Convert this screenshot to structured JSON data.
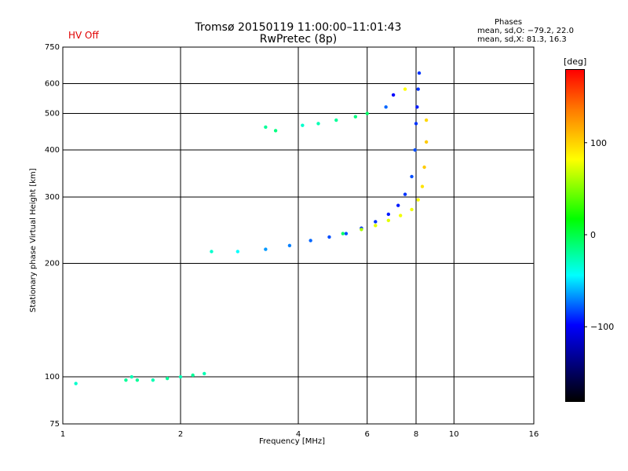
{
  "status_text": "HV Off",
  "title_line1": "Tromsø 20150119 11:00:00–11:01:43",
  "title_line2": "RwPretec (8p)",
  "stats": {
    "header": "Phases",
    "line_o": "mean, sd,O: −79.2, 22.0",
    "line_x": "mean, sd,X: 81.3, 16.3"
  },
  "colorbar": {
    "unit": "[deg]",
    "ticks": [
      {
        "label": "100",
        "value": 100
      },
      {
        "label": "0",
        "value": 0
      },
      {
        "label": "−100",
        "value": -100
      }
    ],
    "range": [
      -180,
      180
    ]
  },
  "chart_data": {
    "type": "scatter",
    "xlabel": "Frequency [MHz]",
    "ylabel": "Stationary phase Virtual Height [km]",
    "x_scale": "log",
    "y_scale": "log",
    "xlim": [
      1,
      16
    ],
    "ylim": [
      75,
      750
    ],
    "xticks": [
      {
        "label": "1",
        "value": 1
      },
      {
        "label": "2",
        "value": 2
      },
      {
        "label": "4",
        "value": 4
      },
      {
        "label": "6",
        "value": 6
      },
      {
        "label": "8",
        "value": 8
      },
      {
        "label": "10",
        "value": 10
      },
      {
        "label": "16",
        "value": 16
      }
    ],
    "yticks": [
      {
        "label": "75",
        "value": 75
      },
      {
        "label": "100",
        "value": 100
      },
      {
        "label": "200",
        "value": 200
      },
      {
        "label": "300",
        "value": 300
      },
      {
        "label": "400",
        "value": 400
      },
      {
        "label": "500",
        "value": 500
      },
      {
        "label": "600",
        "value": 600
      },
      {
        "label": "750",
        "value": 750
      }
    ],
    "grid": true,
    "series": [
      {
        "trace": "e-layer",
        "points": [
          [
            1.08,
            96,
            -40
          ],
          [
            1.45,
            98,
            -30
          ],
          [
            1.5,
            100,
            -35
          ],
          [
            1.55,
            98,
            -30
          ],
          [
            1.7,
            98,
            -35
          ],
          [
            1.85,
            99,
            -30
          ],
          [
            2.0,
            100,
            -35
          ],
          [
            2.15,
            101,
            -30
          ],
          [
            2.3,
            102,
            -35
          ]
        ]
      },
      {
        "trace": "o-trace-f",
        "points": [
          [
            2.4,
            215,
            -40
          ],
          [
            2.8,
            215,
            -50
          ],
          [
            3.3,
            218,
            -70
          ],
          [
            3.8,
            223,
            -75
          ],
          [
            4.3,
            230,
            -80
          ],
          [
            4.8,
            235,
            -85
          ],
          [
            5.3,
            240,
            -85
          ],
          [
            5.8,
            248,
            -90
          ],
          [
            6.3,
            258,
            -90
          ],
          [
            6.8,
            270,
            -95
          ],
          [
            7.2,
            285,
            -95
          ],
          [
            7.5,
            305,
            -90
          ],
          [
            7.8,
            340,
            -85
          ],
          [
            7.95,
            400,
            -85
          ],
          [
            8.0,
            470,
            -90
          ],
          [
            8.05,
            520,
            -95
          ],
          [
            8.1,
            580,
            -90
          ],
          [
            8.15,
            640,
            -90
          ]
        ]
      },
      {
        "trace": "x-trace-f",
        "points": [
          [
            5.2,
            240,
            -20
          ],
          [
            5.8,
            246,
            60
          ],
          [
            6.3,
            252,
            80
          ],
          [
            6.8,
            260,
            80
          ],
          [
            7.3,
            268,
            85
          ],
          [
            7.8,
            278,
            85
          ],
          [
            8.1,
            295,
            90
          ],
          [
            8.3,
            320,
            100
          ],
          [
            8.4,
            360,
            110
          ],
          [
            8.5,
            420,
            110
          ],
          [
            8.5,
            480,
            105
          ]
        ]
      },
      {
        "trace": "f2-upper",
        "points": [
          [
            3.3,
            460,
            -30
          ],
          [
            3.5,
            450,
            -25
          ],
          [
            4.1,
            465,
            -40
          ],
          [
            4.5,
            470,
            -35
          ],
          [
            5.0,
            480,
            -30
          ],
          [
            5.6,
            490,
            -25
          ],
          [
            6.0,
            500,
            -20
          ],
          [
            6.7,
            520,
            -80
          ],
          [
            7.0,
            560,
            -100
          ],
          [
            7.5,
            580,
            90
          ]
        ]
      }
    ]
  }
}
